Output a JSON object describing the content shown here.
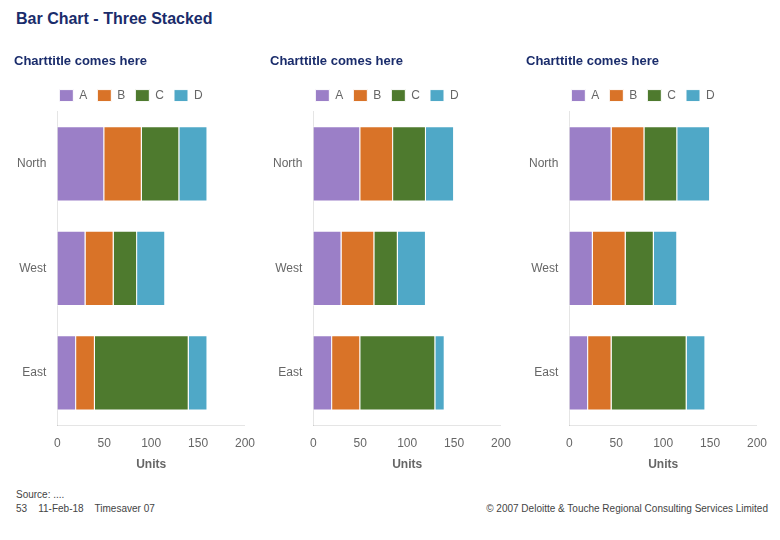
{
  "title": "Bar Chart - Three Stacked",
  "annotations": [
    "Source: ....",
    "53    11-Feb-18    Timesaver 07",
    "© 2007 Deloitte & Touche Regional Consulting Services Limited"
  ],
  "chart_data": [
    {
      "type": "bar",
      "title": "Charttitle comes here",
      "orientation": "horizontal",
      "stacked": true,
      "categories": [
        "North",
        "West",
        "East"
      ],
      "series": [
        {
          "name": "A",
          "color": "#9b7fc7",
          "values": [
            50,
            30,
            20
          ]
        },
        {
          "name": "B",
          "color": "#d97328",
          "values": [
            40,
            30,
            20
          ]
        },
        {
          "name": "C",
          "color": "#4e7a2e",
          "values": [
            40,
            25,
            100
          ]
        },
        {
          "name": "D",
          "color": "#4fa8c7",
          "values": [
            30,
            30,
            20
          ]
        }
      ],
      "xlabel": "Units",
      "xlim": [
        0,
        200
      ],
      "xticks": [
        0,
        50,
        100,
        150,
        200
      ],
      "grid": false,
      "legend": "top"
    },
    {
      "type": "bar",
      "title": "Charttitle comes here",
      "orientation": "horizontal",
      "stacked": true,
      "categories": [
        "North",
        "West",
        "East"
      ],
      "series": [
        {
          "name": "A",
          "color": "#9b7fc7",
          "values": [
            50,
            30,
            20
          ]
        },
        {
          "name": "B",
          "color": "#d97328",
          "values": [
            35,
            35,
            30
          ]
        },
        {
          "name": "C",
          "color": "#4e7a2e",
          "values": [
            35,
            25,
            80
          ]
        },
        {
          "name": "D",
          "color": "#4fa8c7",
          "values": [
            30,
            30,
            10
          ]
        }
      ],
      "xlabel": "Units",
      "xlim": [
        0,
        200
      ],
      "xticks": [
        0,
        50,
        100,
        150,
        200
      ],
      "grid": false,
      "legend": "top"
    },
    {
      "type": "bar",
      "title": "Charttitle comes here",
      "orientation": "horizontal",
      "stacked": true,
      "categories": [
        "North",
        "West",
        "East"
      ],
      "series": [
        {
          "name": "A",
          "color": "#9b7fc7",
          "values": [
            45,
            25,
            20
          ]
        },
        {
          "name": "B",
          "color": "#d97328",
          "values": [
            35,
            35,
            25
          ]
        },
        {
          "name": "C",
          "color": "#4e7a2e",
          "values": [
            35,
            30,
            80
          ]
        },
        {
          "name": "D",
          "color": "#4fa8c7",
          "values": [
            35,
            25,
            20
          ]
        }
      ],
      "xlabel": "Units",
      "xlim": [
        0,
        200
      ],
      "xticks": [
        0,
        50,
        100,
        150,
        200
      ],
      "grid": false,
      "legend": "top"
    }
  ]
}
